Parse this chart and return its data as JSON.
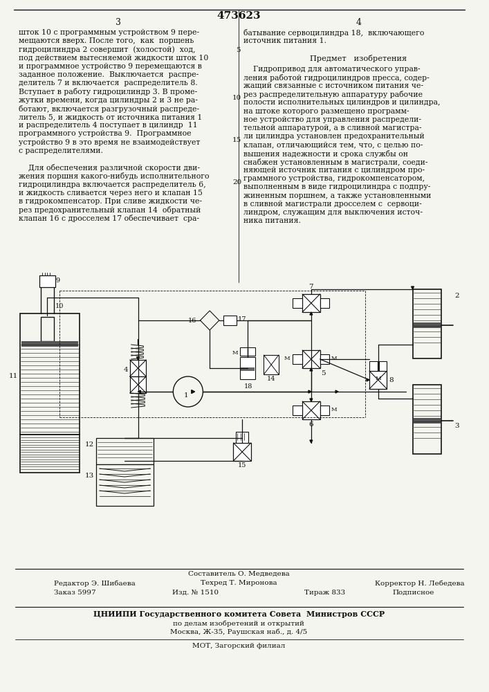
{
  "patent_number": "473623",
  "background_color": "#f5f5f0",
  "text_color": "#111111",
  "line_color": "#111111",
  "col3_text": [
    "шток 10 с программным устройством 9 пере-",
    "мещаются вверх. После того,  как  поршень",
    "гидроцилиндра 2 совершит  (холостой)  ход,",
    "под действием вытесняемой жидкости шток 10",
    "и программное устройство 9 перемещаются в",
    "заданное положение.  Выключается  распре-",
    "делитель 7 и включается  распределитель 8.",
    "Вступает в работу гидроцилиндр 3. В проме-",
    "жутки времени, когда цилиндры 2 и 3 не ра-",
    "ботают, включается разгрузочный распреде-",
    "литель 5, и жидкость от источника питания 1",
    "и распределитель 4 поступает в цилиндр  11",
    "программного устройства 9.  Программное",
    "устройство 9 в это время не взаимодействует",
    "с распределителями.",
    "",
    "    Для обеспечения различной скорости дви-",
    "жения поршня какого-нибудь исполнительного",
    "гидроцилиндра включается распределитель 6,",
    "и жидкость сливается через него и клапан 15",
    "в гидрокомпенсатор. При сливе жидкости че-",
    "рез предохранительный клапан 14  обратный",
    "клапан 16 с дросселем 17 обеспечивает  сра-"
  ],
  "col4_intro": [
    "батывание сервоцилиндра 18,  включающего",
    "источник питания 1."
  ],
  "subject_heading": "Предмет   изобретения",
  "col4_body": [
    "    Гидропривод для автоматического управ-",
    "ления работой гидроцилиндров пресса, содер-",
    "жащий связанные с источником питания че-",
    "рез распределительную аппаратуру рабочие",
    "полости исполнительных цилиндров и цилиндра,",
    "на штоке которого размещено программ-",
    "ное устройство для управления распредели-",
    "тельной аппаратурой, а в сливной магистра-",
    "ли цилиндра установлен предохранительный",
    "клапан, отличающийся тем, что, с целью по-",
    "вышения надежности и срока службы он",
    "снабжен установленным в магистрали, соеди-",
    "няющей источник питания с цилиндром про-",
    "граммного устройства, гидрокомпенсатором,",
    "выполненным в виде гидроцилиндра с подпру-",
    "жиненным поршнем, а также установленными",
    "в сливной магистрали дросселем с  сервоци-",
    "линдром, служащим для выключения источ-",
    "ника питания."
  ],
  "footer_editor": "Редактор Э. Шибаева",
  "footer_composer": "Составитель О. Медведева",
  "footer_techred": "Техред Т. Миронова",
  "footer_corrector": "Корректор Н. Лебедева",
  "footer_order": "Заказ 5997",
  "footer_izd": "Изд. № 1510",
  "footer_tirazh": "Тираж 833",
  "footer_podp": "Подписное",
  "footer_org": "ЦНИИПИ Государственного комитета Совета  Министров СССР",
  "footer_dept": "по делам изобретений и открытий",
  "footer_addr": "Москва, Ж-35, Раушская наб., д. 4/5",
  "footer_mot": "МОТ, Загорский филиал"
}
